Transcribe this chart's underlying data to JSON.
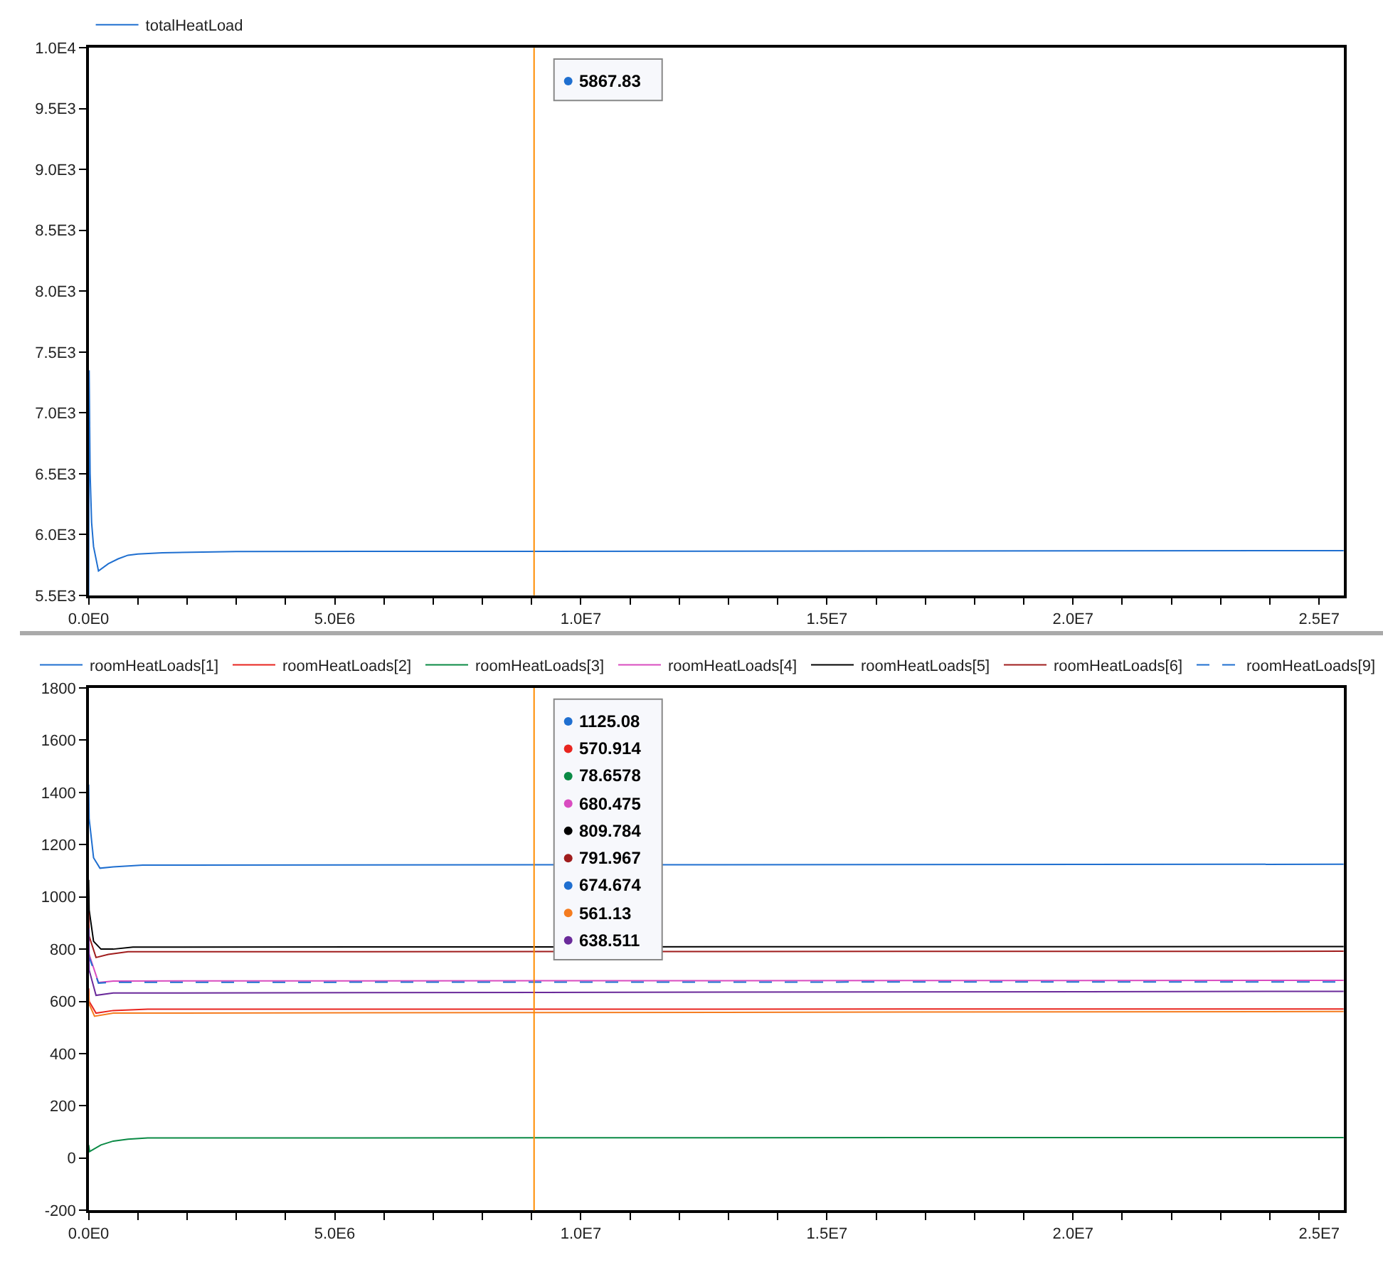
{
  "chart_data": [
    {
      "type": "line",
      "legend": "top",
      "marker": "none",
      "series": [
        {
          "name": "totalHeatLoad",
          "color": "#1f6fd0",
          "line_style": "solid",
          "x": [
            0,
            10000,
            30000,
            60000,
            100000,
            200000,
            400000,
            600000,
            800000,
            1000000,
            1500000,
            3000000,
            25500000
          ],
          "values": [
            5500,
            7350,
            6500,
            6100,
            5900,
            5700,
            5760,
            5800,
            5830,
            5840,
            5850,
            5860,
            5867.83
          ]
        }
      ],
      "xlim": [
        0,
        25500000
      ],
      "xticks": [
        {
          "value": 0,
          "label": "0.0E0"
        },
        {
          "value": 1000000,
          "label": null
        },
        {
          "value": 2000000,
          "label": null
        },
        {
          "value": 3000000,
          "label": null
        },
        {
          "value": 4000000,
          "label": null
        },
        {
          "value": 5000000,
          "label": "5.0E6"
        },
        {
          "value": 6000000,
          "label": null
        },
        {
          "value": 7000000,
          "label": null
        },
        {
          "value": 8000000,
          "label": null
        },
        {
          "value": 9000000,
          "label": null
        },
        {
          "value": 10000000,
          "label": "1.0E7"
        },
        {
          "value": 11000000,
          "label": null
        },
        {
          "value": 12000000,
          "label": null
        },
        {
          "value": 13000000,
          "label": null
        },
        {
          "value": 14000000,
          "label": null
        },
        {
          "value": 15000000,
          "label": "1.5E7"
        },
        {
          "value": 16000000,
          "label": null
        },
        {
          "value": 17000000,
          "label": null
        },
        {
          "value": 18000000,
          "label": null
        },
        {
          "value": 19000000,
          "label": null
        },
        {
          "value": 20000000,
          "label": "2.0E7"
        },
        {
          "value": 21000000,
          "label": null
        },
        {
          "value": 22000000,
          "label": null
        },
        {
          "value": 23000000,
          "label": null
        },
        {
          "value": 24000000,
          "label": null
        },
        {
          "value": 25000000,
          "label": "2.5E7"
        }
      ],
      "ylim": [
        5500,
        10000
      ],
      "yticks": [
        {
          "value": 5500,
          "label": "5.5E3"
        },
        {
          "value": 6000,
          "label": "6.0E3"
        },
        {
          "value": 6500,
          "label": "6.5E3"
        },
        {
          "value": 7000,
          "label": "7.0E3"
        },
        {
          "value": 7500,
          "label": "7.5E3"
        },
        {
          "value": 8000,
          "label": "8.0E3"
        },
        {
          "value": 8500,
          "label": "8.5E3"
        },
        {
          "value": 9000,
          "label": "9.0E3"
        },
        {
          "value": 9500,
          "label": "9.5E3"
        },
        {
          "value": 10000,
          "label": "1.0E4"
        }
      ],
      "ref_lines": [
        {
          "axis": "x",
          "value": 9050000,
          "color": "#ff8c00"
        }
      ],
      "annotations": [
        "5867.83"
      ]
    },
    {
      "type": "line",
      "legend": "top",
      "marker": "none",
      "series": [
        {
          "name": "roomHeatLoads[1]",
          "color": "#1f6fd0",
          "line_style": "solid",
          "x": [
            0,
            10000,
            100000,
            230000,
            500000,
            1100000,
            25500000
          ],
          "values": [
            1430,
            1300,
            1150,
            1110,
            1115,
            1122,
            1125.08
          ]
        },
        {
          "name": "roomHeatLoads[2]",
          "color": "#e8251f",
          "line_style": "solid",
          "x": [
            0,
            10000,
            150000,
            500000,
            1200000,
            25500000
          ],
          "values": [
            650,
            600,
            555,
            565,
            570,
            570.914
          ]
        },
        {
          "name": "roomHeatLoads[3]",
          "color": "#0a8a45",
          "line_style": "solid",
          "x": [
            0,
            20000,
            250000,
            500000,
            800000,
            1200000,
            25500000
          ],
          "values": [
            50,
            25,
            50,
            65,
            72,
            77,
            78.6578
          ]
        },
        {
          "name": "roomHeatLoads[4]",
          "color": "#d94cc0",
          "line_style": "solid",
          "x": [
            0,
            10000,
            200000,
            500000,
            25500000
          ],
          "values": [
            890,
            780,
            672,
            678,
            680.475
          ]
        },
        {
          "name": "roomHeatLoads[5]",
          "color": "#000000",
          "line_style": "solid",
          "x": [
            0,
            10000,
            100000,
            250000,
            500000,
            900000,
            25500000
          ],
          "values": [
            1065,
            950,
            830,
            800,
            800,
            808,
            809.784
          ]
        },
        {
          "name": "roomHeatLoads[6]",
          "color": "#a01d1d",
          "line_style": "solid",
          "x": [
            0,
            10000,
            150000,
            400000,
            800000,
            25500000
          ],
          "values": [
            940,
            850,
            768,
            780,
            790,
            791.967
          ]
        },
        {
          "name": "roomHeatLoads[9]",
          "color": "#1f6fd0",
          "line_style": "dashed",
          "x": [
            0,
            10000,
            200000,
            500000,
            25500000
          ],
          "values": [
            880,
            770,
            670,
            673,
            674.674
          ]
        },
        {
          "color": "#f57c1f",
          "line_style": "solid",
          "x": [
            0,
            10000,
            120000,
            500000,
            25500000
          ],
          "values": [
            640,
            590,
            543,
            555,
            561.13
          ]
        },
        {
          "color": "#6a2a9a",
          "line_style": "solid",
          "x": [
            0,
            10000,
            150000,
            500000,
            25500000
          ],
          "values": [
            880,
            720,
            623,
            632,
            638.511
          ]
        }
      ],
      "xlim": [
        0,
        25500000
      ],
      "xticks": [
        {
          "value": 0,
          "label": "0.0E0"
        },
        {
          "value": 1000000,
          "label": null
        },
        {
          "value": 2000000,
          "label": null
        },
        {
          "value": 3000000,
          "label": null
        },
        {
          "value": 4000000,
          "label": null
        },
        {
          "value": 5000000,
          "label": "5.0E6"
        },
        {
          "value": 6000000,
          "label": null
        },
        {
          "value": 7000000,
          "label": null
        },
        {
          "value": 8000000,
          "label": null
        },
        {
          "value": 9000000,
          "label": null
        },
        {
          "value": 10000000,
          "label": "1.0E7"
        },
        {
          "value": 11000000,
          "label": null
        },
        {
          "value": 12000000,
          "label": null
        },
        {
          "value": 13000000,
          "label": null
        },
        {
          "value": 14000000,
          "label": null
        },
        {
          "value": 15000000,
          "label": "1.5E7"
        },
        {
          "value": 16000000,
          "label": null
        },
        {
          "value": 17000000,
          "label": null
        },
        {
          "value": 18000000,
          "label": null
        },
        {
          "value": 19000000,
          "label": null
        },
        {
          "value": 20000000,
          "label": "2.0E7"
        },
        {
          "value": 21000000,
          "label": null
        },
        {
          "value": 22000000,
          "label": null
        },
        {
          "value": 23000000,
          "label": null
        },
        {
          "value": 24000000,
          "label": null
        },
        {
          "value": 25000000,
          "label": "2.5E7"
        }
      ],
      "ylim": [
        -200,
        1800
      ],
      "yticks": [
        -200,
        0,
        200,
        400,
        600,
        800,
        1000,
        1200,
        1400,
        1600,
        1800
      ],
      "ref_lines": [
        {
          "axis": "x",
          "value": 9050000,
          "color": "#ff8c00"
        }
      ],
      "annotations": [
        "1125.08",
        "570.914",
        "78.6578",
        "680.475",
        "809.784",
        "791.967",
        "674.674",
        "561.13",
        "638.511"
      ]
    }
  ]
}
